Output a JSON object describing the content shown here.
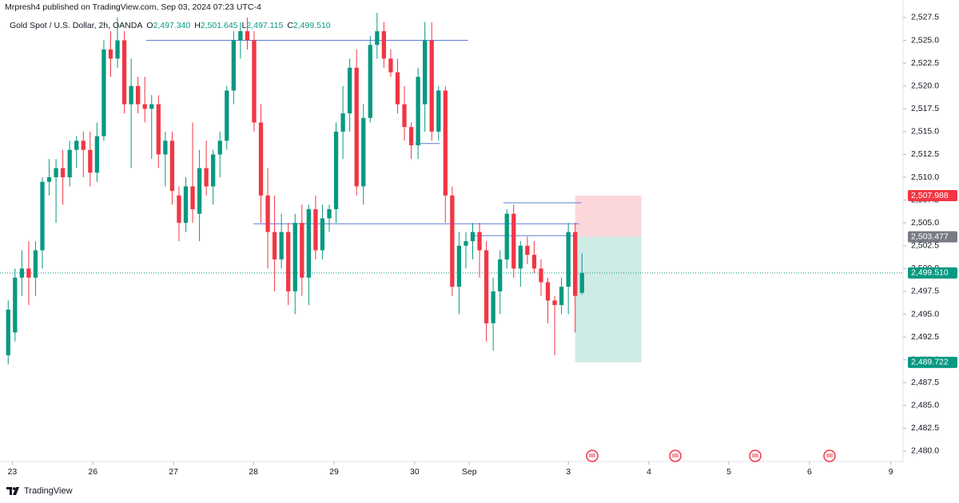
{
  "chart_data": {
    "type": "candlestick",
    "publisher_line": "Mrpresh4 published on TradingView.com, Sep 03, 2024 07:23 UTC-4",
    "symbol": "Gold Spot / U.S. Dollar, 2h, OANDA",
    "legend_ohlc": [
      {
        "key": "O",
        "value": "2,497.340"
      },
      {
        "key": "H",
        "value": "2,501.645"
      },
      {
        "key": "L",
        "value": "2,497.115"
      },
      {
        "key": "C",
        "value": "2,499.510"
      }
    ],
    "brand": "TradingView",
    "up_color": "#089981",
    "down_color": "#f23645",
    "open": [
      2490.5,
      2493,
      2499,
      2500,
      2499,
      2502,
      2509.5,
      2510,
      2511,
      2510,
      2513,
      2514,
      2513,
      2510.5,
      2514.5,
      2524,
      2523,
      2525,
      2518,
      2520,
      2518,
      2517.5,
      2518,
      2512.5,
      2514,
      2508,
      2505,
      2509,
      2506,
      2511,
      2509,
      2512.5,
      2514,
      2519.5,
      2525,
      2526,
      2525,
      2516,
      2508,
      2504,
      2501,
      2504,
      2497.5,
      2505,
      2499,
      2506.5,
      2502,
      2505.5,
      2506.5,
      2515,
      2517,
      2522,
      2509,
      2516.5,
      2524.5,
      2526,
      2523,
      2521.5,
      2518,
      2515.5,
      2513.5,
      2518,
      2525,
      2515,
      2519.5,
      2508,
      2498,
      2502.5,
      2503,
      2504,
      2502,
      2494,
      2497.5,
      2501,
      2506,
      2500,
      2502.5,
      2501.5,
      2500,
      2498.5,
      2496.5,
      2496,
      2498,
      2504,
      2497.34
    ],
    "high": [
      2496.5,
      2500,
      2502,
      2503,
      2503,
      2510,
      2512,
      2512,
      2513,
      2514,
      2514.5,
      2515,
      2515,
      2516,
      2525,
      2526,
      2527.5,
      2526,
      2523,
      2521,
      2521,
      2519,
      2519,
      2515,
      2515,
      2509,
      2510,
      2516,
      2513,
      2514,
      2513,
      2515,
      2520,
      2526,
      2527,
      2527.5,
      2526,
      2518,
      2511,
      2508,
      2506,
      2505,
      2506,
      2507,
      2507,
      2508,
      2507,
      2507,
      2516,
      2520,
      2523,
      2524,
      2518,
      2525.5,
      2528,
      2527,
      2524,
      2523,
      2520,
      2516,
      2522,
      2527,
      2527,
      2520,
      2520,
      2509,
      2504,
      2504,
      2505,
      2505,
      2503,
      2499,
      2502,
      2506.5,
      2507,
      2503,
      2503.5,
      2503,
      2501,
      2499,
      2497,
      2499,
      2505,
      2505,
      2501.645
    ],
    "low": [
      2489.5,
      2492,
      2497,
      2496,
      2497,
      2500,
      2508,
      2505,
      2507,
      2509,
      2511,
      2510,
      2509,
      2509.5,
      2514,
      2521,
      2522,
      2517,
      2511,
      2517,
      2516,
      2512,
      2511,
      2509,
      2507,
      2503,
      2504,
      2505,
      2503,
      2508,
      2507,
      2510,
      2513,
      2518,
      2523,
      2524,
      2515,
      2505,
      2500,
      2497.5,
      2500,
      2496,
      2495,
      2497,
      2496,
      2501,
      2501,
      2504,
      2505,
      2512,
      2515,
      2508,
      2507,
      2516,
      2523,
      2522,
      2521,
      2517,
      2514,
      2512,
      2512,
      2515,
      2514,
      2514,
      2505,
      2497,
      2495,
      2500,
      2501,
      2499,
      2492,
      2491,
      2495,
      2500,
      2499,
      2498,
      2500.5,
      2499.5,
      2497,
      2494,
      2490.5,
      2495,
      2495,
      2493,
      2497.115
    ],
    "close": [
      2495.5,
      2499,
      2500,
      2499,
      2502,
      2509.5,
      2510,
      2511,
      2510,
      2513,
      2514,
      2513,
      2510.5,
      2514.5,
      2524,
      2523,
      2525,
      2518,
      2520,
      2518,
      2517.5,
      2518,
      2512.5,
      2514,
      2508.5,
      2505,
      2509,
      2506.5,
      2511,
      2509,
      2512.5,
      2514,
      2519.5,
      2525,
      2526,
      2525,
      2516,
      2508,
      2504,
      2501,
      2504,
      2497.5,
      2505,
      2499,
      2506.5,
      2502,
      2505.5,
      2506.5,
      2515,
      2517,
      2522,
      2509,
      2516.5,
      2524.5,
      2526,
      2523,
      2521.5,
      2518,
      2515.5,
      2513.5,
      2521,
      2525,
      2515,
      2519.5,
      2508,
      2498,
      2502.5,
      2503,
      2504,
      2502,
      2494,
      2497.5,
      2501,
      2506,
      2500,
      2502.5,
      2501.5,
      2500,
      2498.5,
      2496.5,
      2496,
      2498,
      2504,
      2497,
      2499.51
    ],
    "xlim": [
      -1.2,
      131
    ],
    "ylim": [
      2478.86,
      2529.42
    ],
    "xticks": [
      {
        "value": 0.6,
        "label": "23"
      },
      {
        "value": 12.4,
        "label": "26"
      },
      {
        "value": 24.2,
        "label": "27"
      },
      {
        "value": 35.9,
        "label": "28"
      },
      {
        "value": 47.7,
        "label": "29"
      },
      {
        "value": 59.5,
        "label": "30"
      },
      {
        "value": 67.5,
        "label": "Sep"
      },
      {
        "value": 82,
        "label": "3"
      },
      {
        "value": 93.8,
        "label": "4"
      },
      {
        "value": 105.5,
        "label": "5"
      },
      {
        "value": 117.3,
        "label": "6"
      },
      {
        "value": 129.2,
        "label": "9"
      }
    ],
    "yticks": [
      {
        "value": 2480,
        "label": "2,480.0"
      },
      {
        "value": 2482.5,
        "label": "2,482.5"
      },
      {
        "value": 2485,
        "label": "2,485.0"
      },
      {
        "value": 2487.5,
        "label": "2,487.5"
      },
      {
        "value": 2490,
        "label": "2,490.0"
      },
      {
        "value": 2492.5,
        "label": "2,492.5"
      },
      {
        "value": 2495,
        "label": "2,495.0"
      },
      {
        "value": 2497.5,
        "label": "2,497.5"
      },
      {
        "value": 2500,
        "label": "2,500.0"
      },
      {
        "value": 2502.5,
        "label": "2,502.5"
      },
      {
        "value": 2505,
        "label": "2,505.0"
      },
      {
        "value": 2507.5,
        "label": "2,507.5"
      },
      {
        "value": 2510,
        "label": "2,510.0"
      },
      {
        "value": 2512.5,
        "label": "2,512.5"
      },
      {
        "value": 2515,
        "label": "2,515.0"
      },
      {
        "value": 2517.5,
        "label": "2,517.5"
      },
      {
        "value": 2520,
        "label": "2,520.0"
      },
      {
        "value": 2522.5,
        "label": "2,522.5"
      },
      {
        "value": 2525,
        "label": "2,525.0"
      },
      {
        "value": 2527.5,
        "label": "2,527.5"
      }
    ],
    "hlines": [
      {
        "price": 2525,
        "from": 20.2,
        "to": 67.3
      },
      {
        "price": 2504.9,
        "from": 35.9,
        "to": 83.6
      },
      {
        "price": 2513.7,
        "from": 59.6,
        "to": 63.2
      },
      {
        "price": 2507.2,
        "from": 72.5,
        "to": 83.9
      },
      {
        "price": 2503.6,
        "from": 68,
        "to": 83
      }
    ],
    "hline_color": "#5b7fd6",
    "position": {
      "from": 83,
      "to": 92.7,
      "stop": {
        "value": 2507.988,
        "label": "2,507.988"
      },
      "entry": {
        "value": 2503.477,
        "label": "2,503.477"
      },
      "target": {
        "value": 2489.722,
        "label": "2,489.722"
      }
    },
    "last_price": {
      "value": 2499.51,
      "label": "2,499.510"
    }
  }
}
